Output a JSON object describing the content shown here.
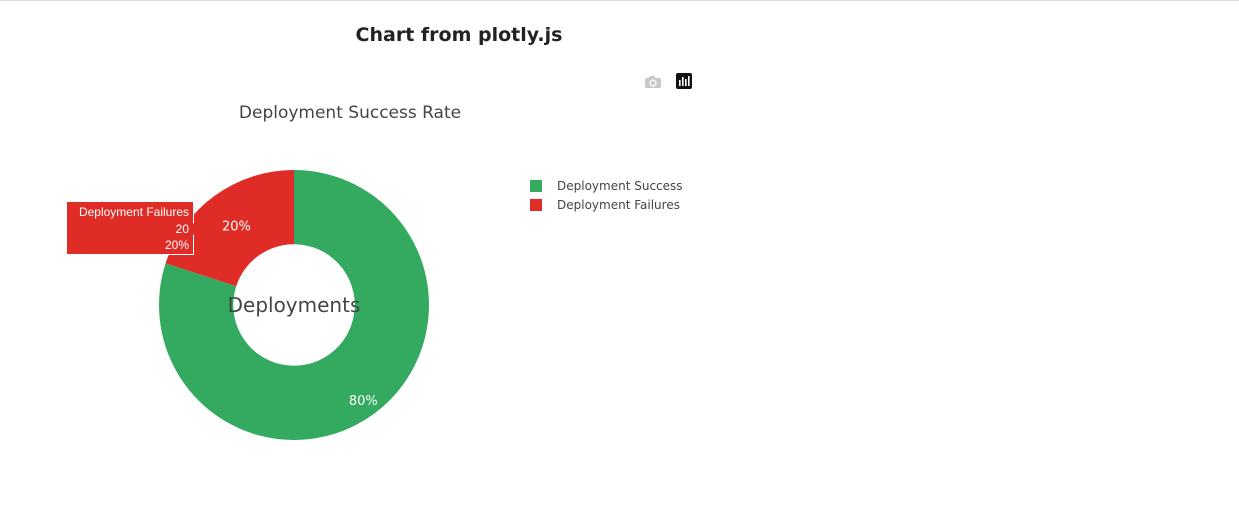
{
  "page": {
    "heading": "Chart from plotly.js"
  },
  "modebar": {
    "camera_icon": "camera-icon",
    "plotly_logo_icon": "plotly-logo-icon"
  },
  "chart_data": {
    "type": "pie",
    "hole": 0.45,
    "title": "Deployment Success Rate",
    "center_annotation": "Deployments",
    "labels": [
      "Deployment Success",
      "Deployment Failures"
    ],
    "values": [
      80,
      20
    ],
    "percent_labels": [
      "80%",
      "20%"
    ],
    "colors": [
      "#33aa60",
      "#e02c26"
    ],
    "legend_position": "right",
    "hover": {
      "label": "Deployment Failures",
      "value": "20",
      "percent": "20%"
    }
  }
}
